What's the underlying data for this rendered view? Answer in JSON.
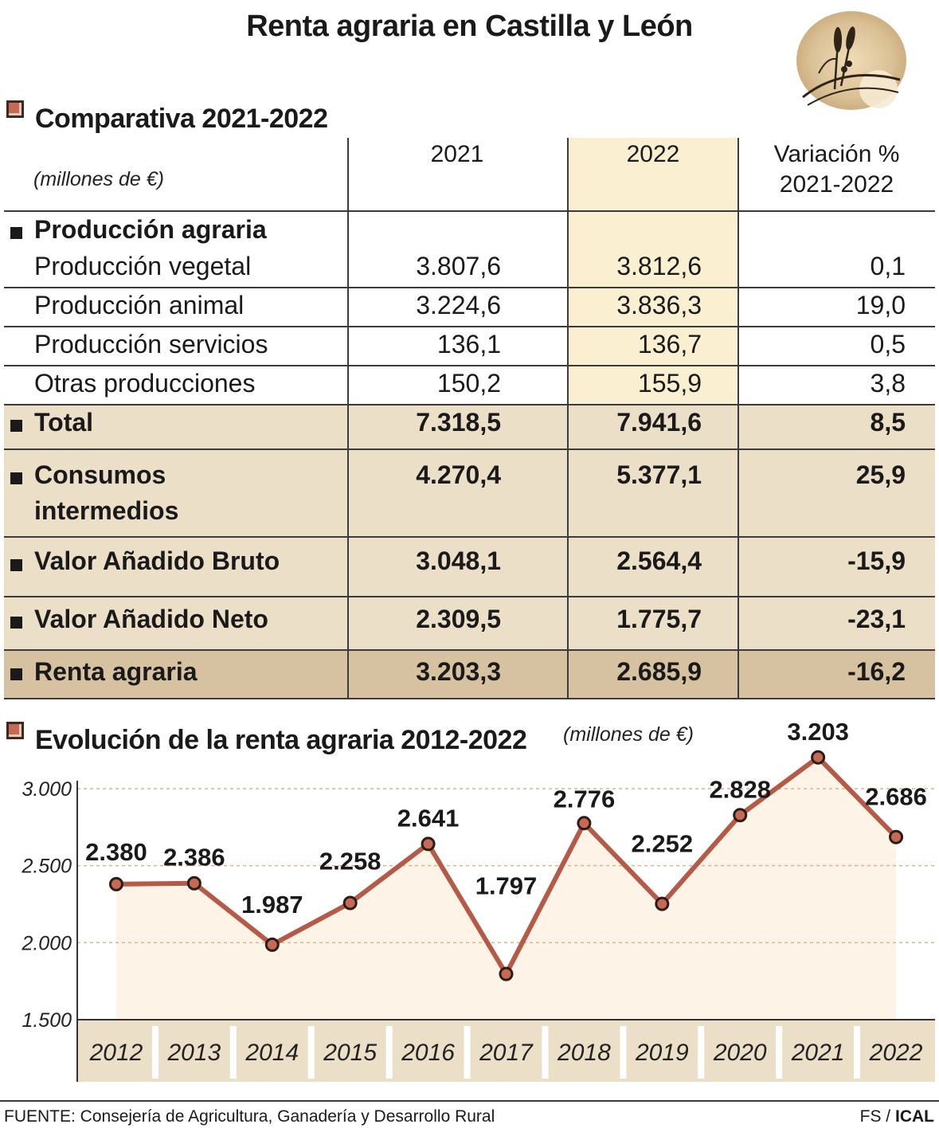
{
  "title": "Renta agraria en Castilla y León",
  "table": {
    "heading": "Comparativa 2021-2022",
    "units": "(millones de €)",
    "columns": {
      "c2021": "2021",
      "c2022": "2022",
      "var_line1": "Variación %",
      "var_line2": "2021-2022"
    },
    "group_label": "Producción agraria",
    "rows": [
      {
        "label": "Producción vegetal",
        "v2021": "3.807,6",
        "v2022": "3.812,6",
        "var": "0,1"
      },
      {
        "label": "Producción animal",
        "v2021": "3.224,6",
        "v2022": "3.836,3",
        "var": "19,0"
      },
      {
        "label": "Producción servicios",
        "v2021": "136,1",
        "v2022": "136,7",
        "var": "0,5"
      },
      {
        "label": "Otras producciones",
        "v2021": "150,2",
        "v2022": "155,9",
        "var": "3,8"
      }
    ],
    "total": {
      "label": "Total",
      "v2021": "7.318,5",
      "v2022": "7.941,6",
      "var": "8,5"
    },
    "consumos": {
      "label_line1": "Consumos",
      "label_line2": "intermedios",
      "v2021": "4.270,4",
      "v2022": "5.377,1",
      "var": "25,9"
    },
    "vab": {
      "label": "Valor Añadido Bruto",
      "v2021": "3.048,1",
      "v2022": "2.564,4",
      "var": "-15,9"
    },
    "van": {
      "label": "Valor Añadido Neto",
      "v2021": "2.309,5",
      "v2022": "1.775,7",
      "var": "-23,1"
    },
    "renta": {
      "label": "Renta agraria",
      "v2021": "3.203,3",
      "v2022": "2.685,9",
      "var": "-16,2"
    }
  },
  "chart_data": {
    "type": "line",
    "title": "Evolución de la renta agraria 2012-2022",
    "units": "(millones de €)",
    "categories": [
      "2012",
      "2013",
      "2014",
      "2015",
      "2016",
      "2017",
      "2018",
      "2019",
      "2020",
      "2021",
      "2022"
    ],
    "values": [
      2380,
      2386,
      1987,
      2258,
      2641,
      1797,
      2776,
      2252,
      2828,
      3203,
      2686
    ],
    "value_labels": [
      "2.380",
      "2.386",
      "1.987",
      "2.258",
      "2.641",
      "1.797",
      "2.776",
      "2.252",
      "2.828",
      "3.203",
      "2.686"
    ],
    "ylim": [
      1500,
      3000
    ],
    "yticks": [
      1500,
      2000,
      2500,
      3000
    ],
    "ytick_labels": [
      "1.500",
      "2.000",
      "2.500",
      "3.000"
    ],
    "grid": true,
    "colors": {
      "line": "#b65a48",
      "marker_fill": "#c76a55",
      "area": "#fdf4e7",
      "grid": "#d9b38a",
      "axis_band": "#ecdfc8"
    }
  },
  "footer": {
    "source": "FUENTE: Consejería de Agricultura, Ganadería y Desarrollo Rural",
    "credit_fs": "FS /",
    "credit_ical": "ICAL"
  },
  "colors": {
    "accent": "#c76a55",
    "highlight_col": "#fbefd2",
    "row_band": "#ecdfc8",
    "row_dark": "#d6c2a0"
  }
}
